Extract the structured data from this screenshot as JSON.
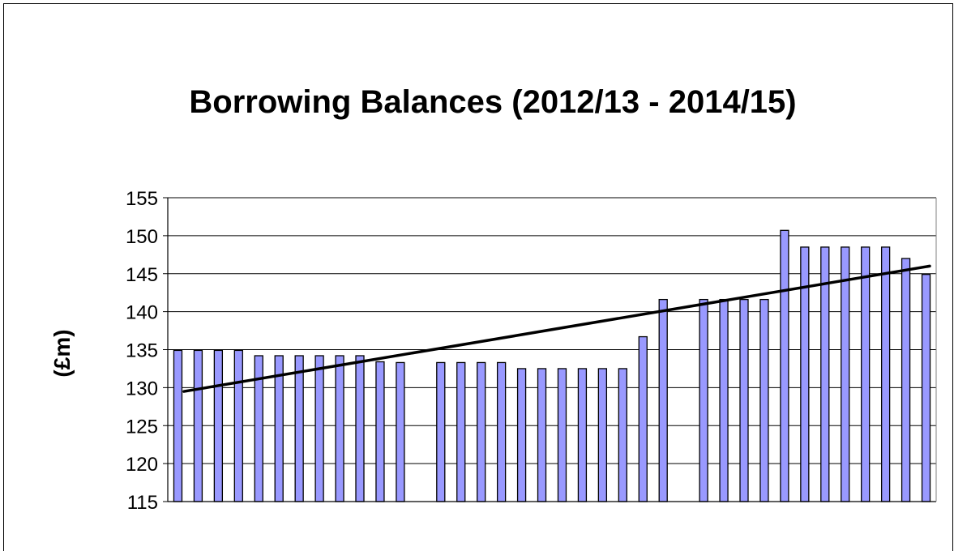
{
  "chart_data": {
    "type": "bar",
    "title": "Borrowing Balances (2012/13 - 2014/15)",
    "xlabel": "",
    "ylabel": "(£m)",
    "ylim": [
      115,
      155
    ],
    "yticks": [
      115,
      120,
      125,
      130,
      135,
      140,
      145,
      150,
      155
    ],
    "grid": true,
    "legend": "none",
    "bar_color": "#9999ff",
    "bar_edge_color": "#000000",
    "values": [
      134.9,
      134.9,
      134.9,
      134.9,
      134.2,
      134.2,
      134.2,
      134.2,
      134.2,
      134.2,
      133.4,
      133.3,
      null,
      133.3,
      133.3,
      133.3,
      133.3,
      132.5,
      132.5,
      132.5,
      132.5,
      132.5,
      132.5,
      136.7,
      141.6,
      null,
      141.6,
      141.6,
      141.6,
      141.6,
      150.7,
      148.5,
      148.5,
      148.5,
      148.5,
      148.5,
      147.0,
      144.9
    ],
    "trendline": {
      "type": "linear",
      "start": 129.5,
      "end": 146.0,
      "color": "#000000"
    }
  }
}
